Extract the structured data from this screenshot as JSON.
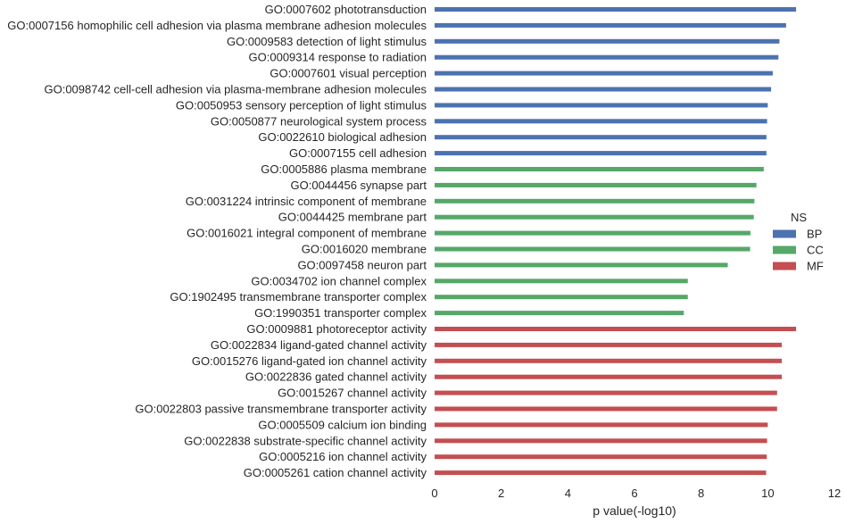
{
  "chart_data": {
    "type": "bar",
    "orientation": "horizontal",
    "xlabel": "p value(-log10)",
    "ylabel": "",
    "xlim": [
      0,
      12
    ],
    "xticks": [
      0,
      2,
      4,
      6,
      8,
      10,
      12
    ],
    "grid": false,
    "legend": {
      "title": "NS",
      "placement": "center-right",
      "entries": [
        {
          "name": "BP",
          "color": "#4c72b0"
        },
        {
          "name": "CC",
          "color": "#55a868"
        },
        {
          "name": "MF",
          "color": "#c44e52"
        }
      ]
    },
    "bars": [
      {
        "label": "GO:0007602 phototransduction",
        "value": 10.85,
        "group": "BP"
      },
      {
        "label": "GO:0007156 homophilic cell adhesion via plasma membrane adhesion molecules",
        "value": 10.55,
        "group": "BP"
      },
      {
        "label": "GO:0009583 detection of light stimulus",
        "value": 10.35,
        "group": "BP"
      },
      {
        "label": "GO:0009314 response to radiation",
        "value": 10.32,
        "group": "BP"
      },
      {
        "label": "GO:0007601 visual perception",
        "value": 10.15,
        "group": "BP"
      },
      {
        "label": "GO:0098742 cell-cell adhesion via plasma-membrane adhesion molecules",
        "value": 10.1,
        "group": "BP"
      },
      {
        "label": "GO:0050953 sensory perception of light stimulus",
        "value": 10.0,
        "group": "BP"
      },
      {
        "label": "GO:0050877 neurological system process",
        "value": 9.98,
        "group": "BP"
      },
      {
        "label": "GO:0022610 biological adhesion",
        "value": 9.96,
        "group": "BP"
      },
      {
        "label": "GO:0007155 cell adhesion",
        "value": 9.96,
        "group": "BP"
      },
      {
        "label": "GO:0005886 plasma membrane",
        "value": 9.88,
        "group": "CC"
      },
      {
        "label": "GO:0044456 synapse part",
        "value": 9.66,
        "group": "CC"
      },
      {
        "label": "GO:0031224 intrinsic component of membrane",
        "value": 9.6,
        "group": "CC"
      },
      {
        "label": "GO:0044425 membrane part",
        "value": 9.58,
        "group": "CC"
      },
      {
        "label": "GO:0016021 integral component of membrane",
        "value": 9.48,
        "group": "CC"
      },
      {
        "label": "GO:0016020 membrane",
        "value": 9.47,
        "group": "CC"
      },
      {
        "label": "GO:0097458 neuron part",
        "value": 8.8,
        "group": "CC"
      },
      {
        "label": "GO:0034702 ion channel complex",
        "value": 7.6,
        "group": "CC"
      },
      {
        "label": "GO:1902495 transmembrane transporter complex",
        "value": 7.6,
        "group": "CC"
      },
      {
        "label": "GO:1990351 transporter complex",
        "value": 7.48,
        "group": "CC"
      },
      {
        "label": "GO:0009881 photoreceptor activity",
        "value": 10.85,
        "group": "MF"
      },
      {
        "label": "GO:0022834 ligand-gated channel activity",
        "value": 10.42,
        "group": "MF"
      },
      {
        "label": "GO:0015276 ligand-gated ion channel activity",
        "value": 10.42,
        "group": "MF"
      },
      {
        "label": "GO:0022836 gated channel activity",
        "value": 10.42,
        "group": "MF"
      },
      {
        "label": "GO:0015267 channel activity",
        "value": 10.28,
        "group": "MF"
      },
      {
        "label": "GO:0022803 passive transmembrane transporter activity",
        "value": 10.28,
        "group": "MF"
      },
      {
        "label": "GO:0005509 calcium ion binding",
        "value": 10.0,
        "group": "MF"
      },
      {
        "label": "GO:0022838 substrate-specific channel activity",
        "value": 9.98,
        "group": "MF"
      },
      {
        "label": "GO:0005216 ion channel activity",
        "value": 9.97,
        "group": "MF"
      },
      {
        "label": "GO:0005261 cation channel activity",
        "value": 9.95,
        "group": "MF"
      }
    ]
  }
}
